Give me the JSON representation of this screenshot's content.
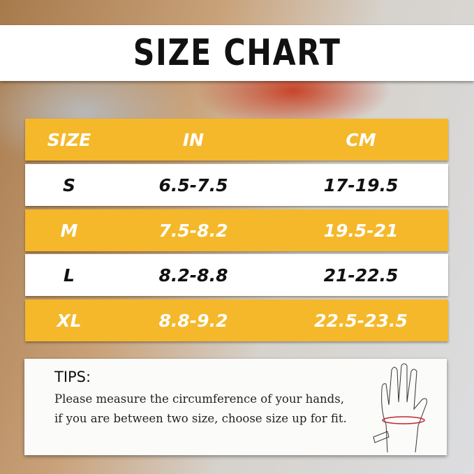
{
  "title": "SIZE CHART",
  "table": {
    "headers": [
      "SIZE",
      "IN",
      "CM"
    ],
    "rows": [
      [
        "S",
        "6.5-7.5",
        "17-19.5"
      ],
      [
        "M",
        "7.5-8.2",
        "19.5-21"
      ],
      [
        "L",
        "8.2-8.8",
        "21-22.5"
      ],
      [
        "XL",
        "8.8-9.2",
        "22.5-23.5"
      ]
    ]
  },
  "tips": {
    "heading": "TIPS:",
    "text": "Please measure the circumference of your hands, if you are between two size, choose size up for fit."
  },
  "colors": {
    "accent": "#f4b82a",
    "measure_line": "#c0282c"
  },
  "icons": [
    "hand-measure-icon"
  ]
}
